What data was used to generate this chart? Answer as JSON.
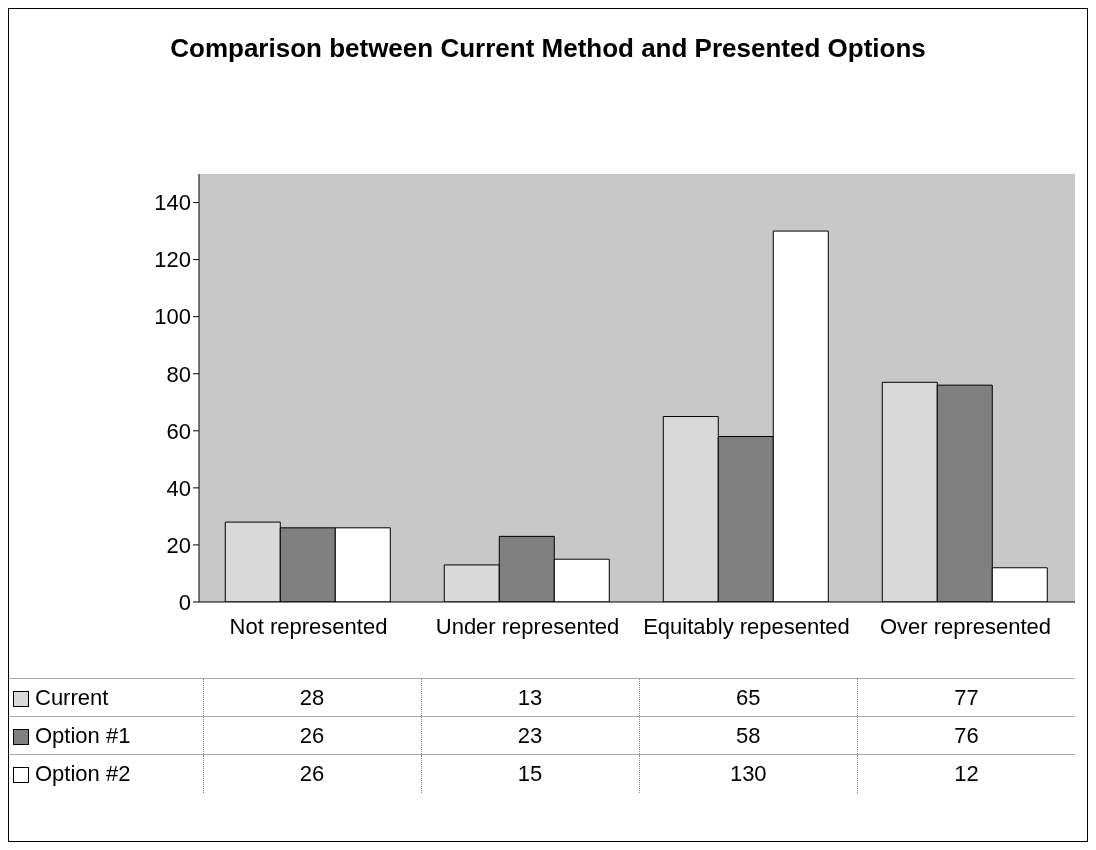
{
  "chart_data": {
    "type": "bar",
    "title": "Comparison between Current Method and Presented Options",
    "categories": [
      "Not represented",
      "Under represented",
      "Equitably repesented",
      "Over represented"
    ],
    "series": [
      {
        "name": "Current",
        "color": "#d9d9d9",
        "values": [
          28,
          13,
          65,
          77
        ]
      },
      {
        "name": "Option #1",
        "color": "#808080",
        "values": [
          26,
          23,
          58,
          76
        ]
      },
      {
        "name": "Option #2",
        "color": "#ffffff",
        "values": [
          26,
          15,
          130,
          12
        ]
      }
    ],
    "ylim": [
      0,
      150
    ],
    "yticks": [
      0,
      20,
      40,
      60,
      80,
      100,
      120,
      140
    ],
    "data_labels": true,
    "legend": "bottom"
  }
}
